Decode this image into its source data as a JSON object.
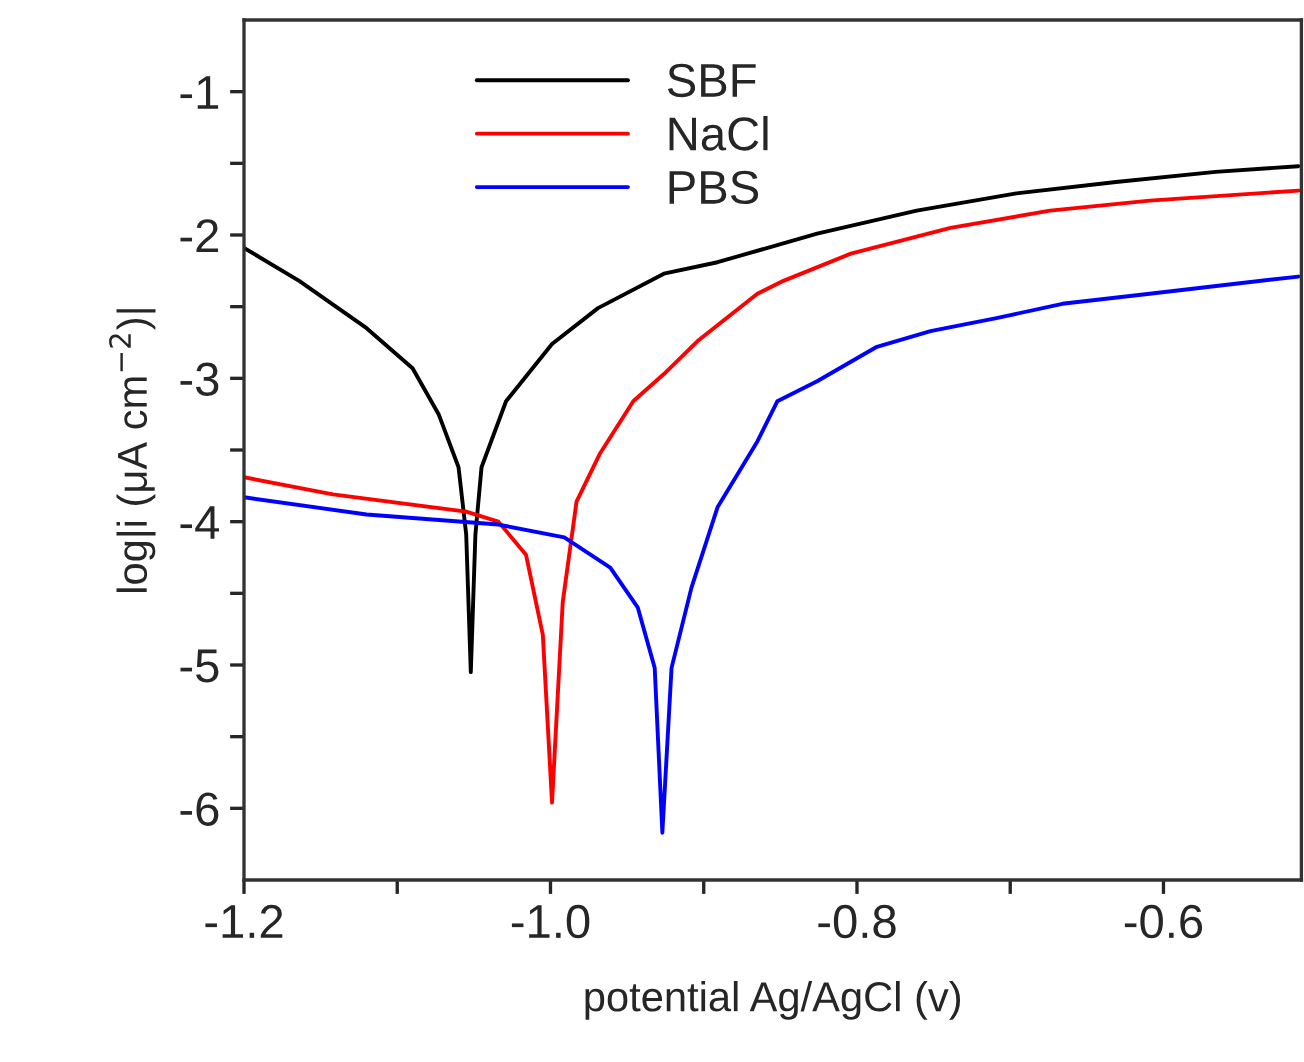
{
  "chart_data": {
    "type": "line",
    "xlabel": "potential Ag/AgCl (v)",
    "ylabel": "log|i (μA cm$^{−2}$)|",
    "xlim": [
      -1.2,
      -0.51
    ],
    "ylim": [
      -6.5,
      -0.5
    ],
    "xticks": [
      {
        "value": -1.2,
        "label": "-1.2"
      },
      {
        "value": -1.1,
        "label": null
      },
      {
        "value": -1.0,
        "label": "-1.0"
      },
      {
        "value": -0.9,
        "label": null
      },
      {
        "value": -0.8,
        "label": "-0.8"
      },
      {
        "value": -0.7,
        "label": null
      },
      {
        "value": -0.6,
        "label": "-0.6"
      }
    ],
    "yticks": [
      {
        "value": -6,
        "label": "-6"
      },
      {
        "value": -5.5,
        "label": null
      },
      {
        "value": -5,
        "label": "-5"
      },
      {
        "value": -4.5,
        "label": null
      },
      {
        "value": -4,
        "label": "-4"
      },
      {
        "value": -3.5,
        "label": null
      },
      {
        "value": -3,
        "label": "-3"
      },
      {
        "value": -2.5,
        "label": null
      },
      {
        "value": -2,
        "label": "-2"
      },
      {
        "value": -1.5,
        "label": null
      },
      {
        "value": -1,
        "label": "-1"
      }
    ],
    "grid": false,
    "legend": "top left",
    "line_style": "solid",
    "marker": "none",
    "series": [
      {
        "name": "SBF",
        "color": "#000000",
        "x": [
          -1.2,
          -1.164,
          -1.12,
          -1.09,
          -1.073,
          -1.06,
          -1.055,
          -1.052,
          -1.049,
          -1.045,
          -1.029,
          -0.999,
          -0.969,
          -0.926,
          -0.891,
          -0.826,
          -0.761,
          -0.696,
          -0.631,
          -0.566,
          -0.512
        ],
        "values": [
          -2.09,
          -2.32,
          -2.65,
          -2.93,
          -3.25,
          -3.62,
          -4.09,
          -5.05,
          -4.09,
          -3.62,
          -3.16,
          -2.76,
          -2.51,
          -2.27,
          -2.19,
          -1.99,
          -1.83,
          -1.71,
          -1.63,
          -1.56,
          -1.52
        ]
      },
      {
        "name": "NaCl",
        "color": "#ff0000",
        "x": [
          -1.2,
          -1.142,
          -1.055,
          -1.034,
          -1.016,
          -1.005,
          -0.999,
          -0.992,
          -0.983,
          -0.968,
          -0.946,
          -0.926,
          -0.904,
          -0.865,
          -0.848,
          -0.804,
          -0.739,
          -0.674,
          -0.609,
          -0.512
        ],
        "values": [
          -3.69,
          -3.81,
          -3.93,
          -4.0,
          -4.23,
          -4.79,
          -5.96,
          -4.56,
          -3.86,
          -3.53,
          -3.16,
          -2.97,
          -2.74,
          -2.41,
          -2.32,
          -2.13,
          -1.95,
          -1.83,
          -1.76,
          -1.69
        ]
      },
      {
        "name": "PBS",
        "color": "#0000ff",
        "x": [
          -1.2,
          -1.12,
          -1.034,
          -0.991,
          -0.961,
          -0.943,
          -0.932,
          -0.927,
          -0.921,
          -0.908,
          -0.891,
          -0.865,
          -0.852,
          -0.826,
          -0.787,
          -0.752,
          -0.709,
          -0.666,
          -0.609,
          -0.553,
          -0.512
        ],
        "values": [
          -3.83,
          -3.95,
          -4.02,
          -4.11,
          -4.32,
          -4.6,
          -5.02,
          -6.17,
          -5.02,
          -4.46,
          -3.9,
          -3.44,
          -3.16,
          -3.02,
          -2.78,
          -2.67,
          -2.58,
          -2.48,
          -2.41,
          -2.34,
          -2.29
        ]
      }
    ]
  }
}
